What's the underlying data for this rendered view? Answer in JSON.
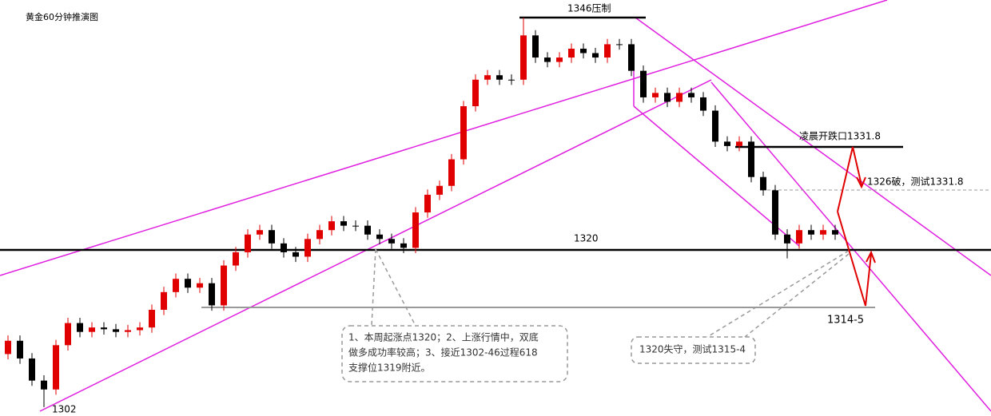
{
  "chart_data": {
    "type": "candlestick",
    "title": "黄金60分钟推演图",
    "annotations": [
      "1346压制",
      "凌晨开跌口1331.8",
      "1326破，测试1331.8",
      "1320",
      "1314-5",
      "1302"
    ],
    "notes": [
      [
        "1、本周起涨点1320；2、上涨行情中，双底",
        "做多成功率较高；3、接近1302-46过程618",
        "支撑位1319附近。"
      ],
      [
        "1320失守，测试1315-4"
      ]
    ],
    "up_color": "#e00000",
    "down_color": "#000000",
    "ylim": [
      1301,
      1348
    ],
    "open": [
      1308,
      1309.5,
      1307.5,
      1305,
      1304,
      1309,
      1311.5,
      1310.5,
      1311,
      1310.8,
      1310.5,
      1310.7,
      1311,
      1313,
      1315,
      1316.5,
      1315.5,
      1316,
      1313.5,
      1318,
      1319.5,
      1321.5,
      1322,
      1320.5,
      1319.5,
      1319,
      1321,
      1322,
      1323,
      1322.5,
      1322.5,
      1321.5,
      1321,
      1320.5,
      1320,
      1324,
      1326,
      1327,
      1330,
      1336,
      1339,
      1339.5,
      1339,
      1339,
      1344,
      1341.5,
      1341,
      1341.5,
      1342.5,
      1342,
      1341.5,
      1343,
      1343,
      1340,
      1337,
      1337.5,
      1336.5,
      1337.5,
      1337,
      1335.5,
      1332,
      1331.5,
      1332,
      1328,
      1326.5,
      1321.5,
      1320.5,
      1322,
      1321.5,
      1322
    ],
    "high": [
      1310.1,
      1310.1,
      1308.1,
      1305.6,
      1309.6,
      1312.1,
      1312.1,
      1311.6,
      1311.6,
      1311.4,
      1311.3,
      1311.6,
      1313.6,
      1315.6,
      1317.1,
      1317.1,
      1316.6,
      1316.6,
      1318.6,
      1320.1,
      1322.1,
      1322.6,
      1322.6,
      1321.1,
      1320.1,
      1321.6,
      1322.6,
      1323.6,
      1323.6,
      1323.1,
      1323.1,
      1322.1,
      1321.6,
      1321.1,
      1324.6,
      1326.6,
      1327.6,
      1330.6,
      1336.6,
      1339.6,
      1340.1,
      1340.1,
      1339.6,
      1346,
      1344.6,
      1342.1,
      1342.1,
      1343.1,
      1343.1,
      1342.6,
      1343.6,
      1343.6,
      1343.6,
      1340.6,
      1338.1,
      1338.1,
      1338.1,
      1338.1,
      1337.6,
      1336.1,
      1332.6,
      1332.6,
      1332.6,
      1328.6,
      1327.1,
      1322.1,
      1322.6,
      1322.6,
      1322.6,
      1322.6
    ],
    "low": [
      1307.4,
      1306.9,
      1304.4,
      1302,
      1303.4,
      1308.4,
      1309.9,
      1309.9,
      1310.2,
      1309.9,
      1309.9,
      1310.1,
      1310.4,
      1312.4,
      1314.4,
      1314.9,
      1314.9,
      1312.9,
      1312.9,
      1317.4,
      1318.9,
      1320.9,
      1319.9,
      1318.9,
      1318.4,
      1318.4,
      1320.4,
      1321.4,
      1321.9,
      1321.9,
      1320.9,
      1320.4,
      1319.9,
      1319.4,
      1319.4,
      1323.4,
      1325.4,
      1326.4,
      1329.4,
      1335.4,
      1338.4,
      1338.4,
      1338.4,
      1338.4,
      1340.9,
      1340.4,
      1340.4,
      1340.9,
      1341.4,
      1340.9,
      1340.9,
      1342.4,
      1339.4,
      1336.4,
      1336.4,
      1335.9,
      1335.9,
      1336.4,
      1334.9,
      1331.4,
      1330.9,
      1330.9,
      1327.4,
      1325.9,
      1320.9,
      1318.8,
      1319.9,
      1320.9,
      1320.9,
      1320.9
    ],
    "close": [
      1309.5,
      1307.5,
      1305,
      1304,
      1309,
      1311.5,
      1310.5,
      1311,
      1310.8,
      1310.5,
      1310.7,
      1311,
      1313,
      1315,
      1316.5,
      1315.5,
      1316,
      1313.5,
      1318,
      1319.5,
      1321.5,
      1322,
      1320.5,
      1319.5,
      1319,
      1321,
      1322,
      1323,
      1322.5,
      1322.5,
      1321.5,
      1321,
      1320.5,
      1320,
      1324,
      1326,
      1327,
      1330,
      1336,
      1339,
      1339.5,
      1339,
      1339,
      1344,
      1341.5,
      1341,
      1341.5,
      1342.5,
      1342,
      1341.5,
      1343,
      1343,
      1340,
      1337,
      1337.5,
      1336.5,
      1337.5,
      1337,
      1335.5,
      1332,
      1331.5,
      1332,
      1328,
      1326.5,
      1321.5,
      1320.5,
      1322,
      1321.5,
      1322,
      1321.5
    ]
  }
}
